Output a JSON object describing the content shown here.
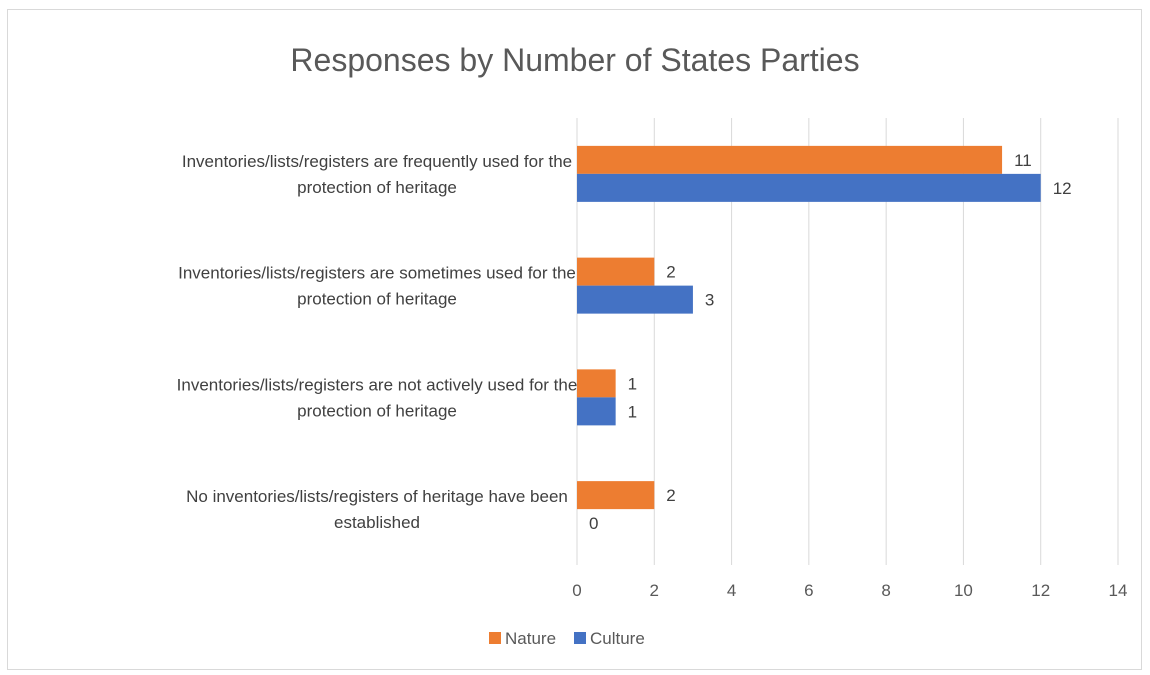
{
  "chart_data": {
    "type": "bar",
    "orientation": "horizontal",
    "title": "Responses by Number of States Parties",
    "categories": [
      [
        "Inventories/lists/registers are frequently used for the",
        "protection of heritage"
      ],
      [
        "Inventories/lists/registers are sometimes used for the",
        "protection of heritage"
      ],
      [
        "Inventories/lists/registers are not actively used for the",
        "protection of heritage"
      ],
      [
        "No inventories/lists/registers of heritage have been",
        "established"
      ]
    ],
    "series": [
      {
        "name": "Nature",
        "color": "#ED7D31",
        "values": [
          11,
          2,
          1,
          2
        ]
      },
      {
        "name": "Culture",
        "color": "#4472C4",
        "values": [
          12,
          3,
          1,
          0
        ]
      }
    ],
    "xlim": [
      0,
      14
    ],
    "xticks": [
      "0",
      "2",
      "4",
      "6",
      "8",
      "10",
      "12",
      "14"
    ],
    "grid": true,
    "legend_position": "bottom"
  }
}
